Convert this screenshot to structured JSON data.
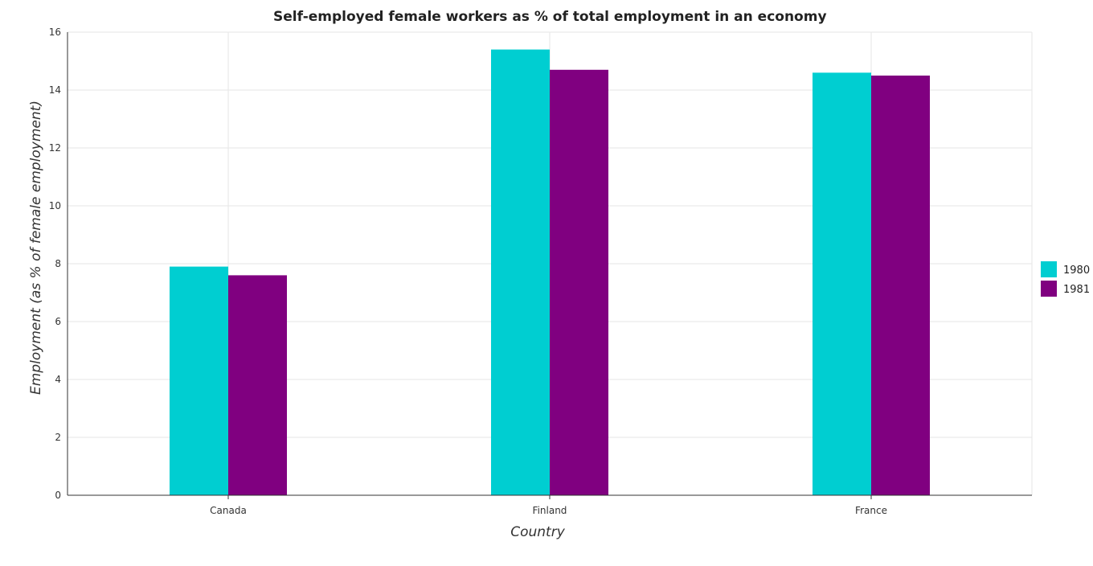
{
  "chart_data": {
    "type": "bar",
    "title": "Self-employed female workers as % of total employment in an economy",
    "xlabel": "Country",
    "ylabel": "Employment (as % of female employment)",
    "categories": [
      "Canada",
      "Finland",
      "France"
    ],
    "series": [
      {
        "name": "1980",
        "values": [
          7.9,
          15.4,
          14.6
        ],
        "color": "#00ced1"
      },
      {
        "name": "1981",
        "values": [
          7.6,
          14.7,
          14.5
        ],
        "color": "#800080"
      }
    ],
    "ylim": [
      0,
      16
    ],
    "yticks": [
      "0",
      "2",
      "4",
      "6",
      "8",
      "10",
      "12",
      "14",
      "16"
    ],
    "grid": true,
    "legend_position": "right"
  }
}
